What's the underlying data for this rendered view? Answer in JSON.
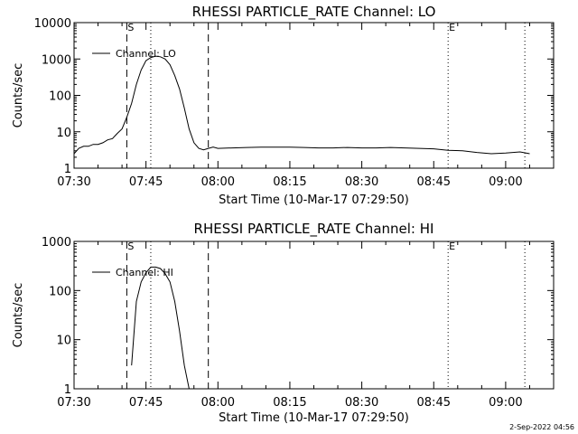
{
  "footer": {
    "timestamp": "2-Sep-2022 04:56"
  },
  "colors": {
    "background": "#ffffff",
    "ink": "#000000"
  },
  "chart_data": [
    {
      "type": "line",
      "title": "RHESSI PARTICLE_RATE Channel: LO",
      "xlabel": "Start Time (10-Mar-17 07:29:50)",
      "ylabel": "Counts/sec",
      "yscale": "log",
      "xlim": [
        "07:30",
        "09:10"
      ],
      "ylim": [
        1,
        10000
      ],
      "x_ticks": [
        "07:30",
        "07:45",
        "08:00",
        "08:15",
        "08:30",
        "08:45",
        "09:00"
      ],
      "y_ticks": [
        "1",
        "10",
        "100",
        "1000",
        "10000"
      ],
      "legend": {
        "position": "top-left",
        "entries": [
          "Channel: LO"
        ]
      },
      "markers": [
        {
          "time": "07:41",
          "style": "dashed",
          "label": "S"
        },
        {
          "time": "07:46",
          "style": "dotted",
          "label": ""
        },
        {
          "time": "07:58",
          "style": "dashed",
          "label": ""
        },
        {
          "time": "08:48",
          "style": "dotted",
          "label": "E"
        },
        {
          "time": "09:04",
          "style": "dotted",
          "label": ""
        }
      ],
      "series": [
        {
          "x": [
            "07:30",
            "07:31",
            "07:32",
            "07:33",
            "07:34",
            "07:35",
            "07:36",
            "07:37",
            "07:38",
            "07:39",
            "07:40",
            "07:41",
            "07:42",
            "07:43",
            "07:44",
            "07:45",
            "07:46",
            "07:47",
            "07:48",
            "07:49",
            "07:50",
            "07:51",
            "07:52",
            "07:53",
            "07:54",
            "07:55",
            "07:56",
            "07:57",
            "07:58",
            "07:59",
            "08:00",
            "08:03",
            "08:06",
            "08:09",
            "08:12",
            "08:15",
            "08:18",
            "08:21",
            "08:24",
            "08:27",
            "08:30",
            "08:33",
            "08:36",
            "08:39",
            "08:42",
            "08:45",
            "08:48",
            "08:51",
            "08:54",
            "08:57",
            "09:00",
            "09:03",
            "09:05"
          ],
          "y": [
            2.5,
            3.5,
            4,
            4,
            4.5,
            4.5,
            5,
            6,
            6.5,
            9,
            12,
            25,
            60,
            200,
            500,
            900,
            1100,
            1200,
            1150,
            1000,
            700,
            350,
            150,
            45,
            12,
            5,
            3.5,
            3.2,
            3.5,
            3.8,
            3.5,
            3.6,
            3.7,
            3.8,
            3.8,
            3.8,
            3.7,
            3.6,
            3.6,
            3.7,
            3.6,
            3.6,
            3.7,
            3.6,
            3.5,
            3.4,
            3.1,
            3.0,
            2.7,
            2.5,
            2.6,
            2.8,
            2.5
          ]
        }
      ]
    },
    {
      "type": "line",
      "title": "RHESSI PARTICLE_RATE Channel: HI",
      "xlabel": "Start Time (10-Mar-17 07:29:50)",
      "ylabel": "Counts/sec",
      "yscale": "log",
      "xlim": [
        "07:30",
        "09:10"
      ],
      "ylim": [
        1,
        1000
      ],
      "x_ticks": [
        "07:30",
        "07:45",
        "08:00",
        "08:15",
        "08:30",
        "08:45",
        "09:00"
      ],
      "y_ticks": [
        "1",
        "10",
        "100",
        "1000"
      ],
      "legend": {
        "position": "top-left",
        "entries": [
          "Channel: HI"
        ]
      },
      "markers": [
        {
          "time": "07:41",
          "style": "dashed",
          "label": "S"
        },
        {
          "time": "07:46",
          "style": "dotted",
          "label": ""
        },
        {
          "time": "07:58",
          "style": "dashed",
          "label": ""
        },
        {
          "time": "08:48",
          "style": "dotted",
          "label": "E"
        },
        {
          "time": "09:04",
          "style": "dotted",
          "label": ""
        }
      ],
      "series": [
        {
          "x": [
            "07:42",
            "07:43",
            "07:44",
            "07:45",
            "07:46",
            "07:47",
            "07:48",
            "07:49",
            "07:50",
            "07:51",
            "07:52",
            "07:53",
            "07:54"
          ],
          "y": [
            3,
            60,
            150,
            230,
            300,
            300,
            280,
            220,
            150,
            60,
            15,
            3,
            1
          ]
        }
      ]
    }
  ]
}
